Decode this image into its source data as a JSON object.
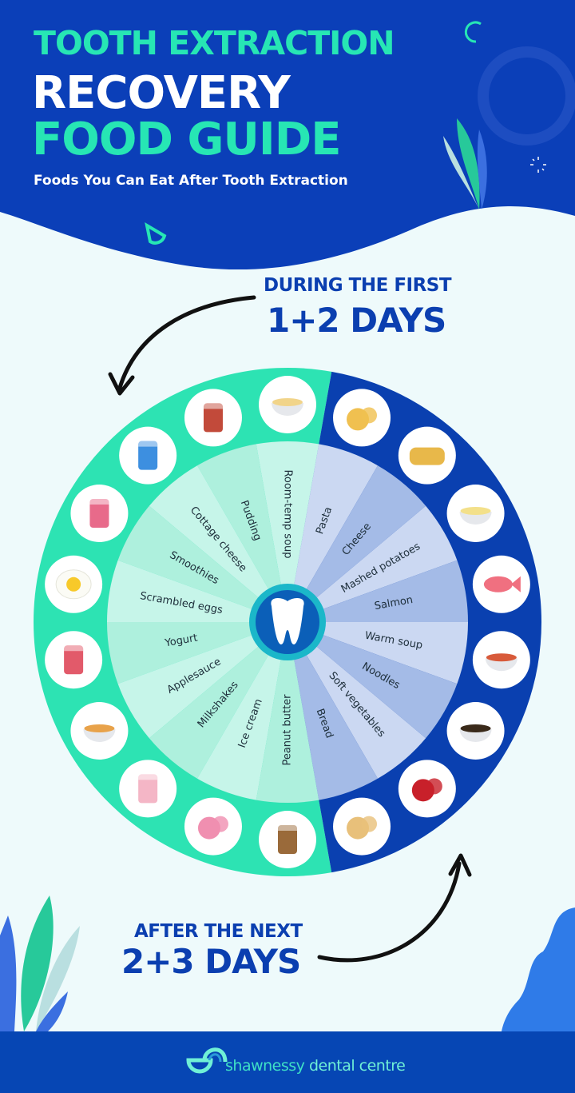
{
  "header": {
    "title_line1": "TOOTH EXTRACTION",
    "title_line2": "RECOVERY",
    "title_line3": "FOOD GUIDE",
    "subtitle": "Foods You Can Eat After Tooth Extraction"
  },
  "first_period": {
    "label": "DURING THE FIRST",
    "days": "1+2 DAYS"
  },
  "next_period": {
    "label": "AFTER THE NEXT",
    "days": "2+3 DAYS"
  },
  "wheel": {
    "center_icon": "tooth-icon",
    "first_days_foods": [
      {
        "label": "Room-temp soup",
        "icon": "soup-bowl-icon"
      },
      {
        "label": "Pudding",
        "icon": "pudding-cup-icon"
      },
      {
        "label": "Cottage cheese",
        "icon": "cottage-cheese-tub-icon"
      },
      {
        "label": "Smoothies",
        "icon": "smoothie-cup-icon"
      },
      {
        "label": "Scrambled eggs",
        "icon": "egg-icon"
      },
      {
        "label": "Yogurt",
        "icon": "yogurt-pack-icon"
      },
      {
        "label": "Applesauce",
        "icon": "applesauce-bowl-icon"
      },
      {
        "label": "Milkshakes",
        "icon": "milkshake-glass-icon"
      },
      {
        "label": "Ice cream",
        "icon": "ice-cream-icon"
      },
      {
        "label": "Peanut butter",
        "icon": "peanut-butter-jar-icon"
      }
    ],
    "next_days_foods": [
      {
        "label": "Pasta",
        "icon": "pasta-icon"
      },
      {
        "label": "Cheese",
        "icon": "cheese-wheel-icon"
      },
      {
        "label": "Mashed potatoes",
        "icon": "mashed-potatoes-bowl-icon"
      },
      {
        "label": "Salmon",
        "icon": "fish-icon"
      },
      {
        "label": "Warm soup",
        "icon": "hot-soup-bowl-icon"
      },
      {
        "label": "Noodles",
        "icon": "noodle-bowl-icon"
      },
      {
        "label": "Soft vegetables",
        "icon": "vegetables-icon"
      },
      {
        "label": "Bread",
        "icon": "bread-icon"
      }
    ],
    "colors": {
      "first_ring": "#2de3b3",
      "first_sector_a": "#c6f5e9",
      "first_sector_b": "#aef0dd",
      "next_ring": "#0a40b0",
      "next_sector_a": "#cbd8f2",
      "next_sector_b": "#a4bbe7"
    }
  },
  "footer": {
    "brand_part1": "shawnessy",
    "brand_part2": " dental centre"
  },
  "colors": {
    "header_bg": "#0b3fb8",
    "accent": "#27e6b4",
    "heading": "#0b3fb0",
    "footer_bg": "#0646b4"
  }
}
